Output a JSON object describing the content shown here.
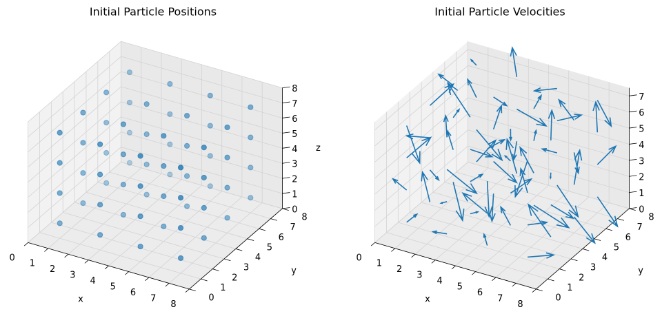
{
  "chart_data": [
    {
      "type": "scatter3d",
      "title": "Initial Particle Positions",
      "x_label": "x",
      "y_label": "y",
      "z_label": "z",
      "color": "#1f77b4",
      "xlim": [
        0,
        8
      ],
      "ylim": [
        0,
        8
      ],
      "zlim": [
        0,
        8
      ],
      "xticks": [
        0,
        1,
        2,
        3,
        4,
        5,
        6,
        7,
        8
      ],
      "yticks": [
        0,
        1,
        2,
        3,
        4,
        5,
        6,
        7,
        8
      ],
      "zticks": [
        0,
        1,
        2,
        3,
        4,
        5,
        6,
        7,
        8
      ],
      "x": [
        1,
        1,
        1,
        1,
        1,
        1,
        1,
        1,
        1,
        1,
        1,
        1,
        1,
        1,
        1,
        1,
        3,
        3,
        3,
        3,
        3,
        3,
        3,
        3,
        3,
        3,
        3,
        3,
        3,
        3,
        3,
        3,
        5,
        5,
        5,
        5,
        5,
        5,
        5,
        5,
        5,
        5,
        5,
        5,
        5,
        5,
        5,
        5,
        7,
        7,
        7,
        7,
        7,
        7,
        7,
        7,
        7,
        7,
        7,
        7,
        7,
        7,
        7,
        7
      ],
      "y": [
        1,
        1,
        1,
        1,
        3,
        3,
        3,
        3,
        5,
        5,
        5,
        5,
        7,
        7,
        7,
        7,
        1,
        1,
        1,
        1,
        3,
        3,
        3,
        3,
        5,
        5,
        5,
        5,
        7,
        7,
        7,
        7,
        1,
        1,
        1,
        1,
        3,
        3,
        3,
        3,
        5,
        5,
        5,
        5,
        7,
        7,
        7,
        7,
        1,
        1,
        1,
        1,
        3,
        3,
        3,
        3,
        5,
        5,
        5,
        5,
        7,
        7,
        7,
        7
      ],
      "z": [
        1,
        3,
        5,
        7,
        1,
        3,
        5,
        7,
        1,
        3,
        5,
        7,
        1,
        3,
        5,
        7,
        1,
        3,
        5,
        7,
        1,
        3,
        5,
        7,
        1,
        3,
        5,
        7,
        1,
        3,
        5,
        7,
        1,
        3,
        5,
        7,
        1,
        3,
        5,
        7,
        1,
        3,
        5,
        7,
        1,
        3,
        5,
        7,
        1,
        3,
        5,
        7,
        1,
        3,
        5,
        7,
        1,
        3,
        5,
        7,
        1,
        3,
        5,
        7
      ]
    },
    {
      "type": "quiver3d",
      "title": "Initial Particle Velocities",
      "x_label": "x",
      "y_label": "y",
      "color": "#1f77b4",
      "xlim": [
        0,
        8
      ],
      "ylim": [
        0,
        8
      ],
      "zlim": [
        0,
        7.5
      ],
      "xticks": [
        0,
        1,
        2,
        3,
        4,
        5,
        6,
        7,
        8
      ],
      "yticks": [
        0,
        1,
        2,
        3,
        4,
        5,
        6,
        7,
        8
      ],
      "zticks": [
        0,
        1,
        2,
        3,
        4,
        5,
        6,
        7
      ],
      "x": [
        1,
        1,
        1,
        1,
        1,
        1,
        1,
        1,
        1,
        1,
        1,
        1,
        1,
        1,
        1,
        1,
        3,
        3,
        3,
        3,
        3,
        3,
        3,
        3,
        3,
        3,
        3,
        3,
        3,
        3,
        3,
        3,
        5,
        5,
        5,
        5,
        5,
        5,
        5,
        5,
        5,
        5,
        5,
        5,
        5,
        5,
        5,
        5,
        7,
        7,
        7,
        7,
        7,
        7,
        7,
        7,
        7,
        7,
        7,
        7,
        7,
        7,
        7,
        7
      ],
      "y": [
        1,
        1,
        1,
        1,
        3,
        3,
        3,
        3,
        5,
        5,
        5,
        5,
        7,
        7,
        7,
        7,
        1,
        1,
        1,
        1,
        3,
        3,
        3,
        3,
        5,
        5,
        5,
        5,
        7,
        7,
        7,
        7,
        1,
        1,
        1,
        1,
        3,
        3,
        3,
        3,
        5,
        5,
        5,
        5,
        7,
        7,
        7,
        7,
        1,
        1,
        1,
        1,
        3,
        3,
        3,
        3,
        5,
        5,
        5,
        5,
        7,
        7,
        7,
        7
      ],
      "z": [
        1,
        3,
        5,
        7,
        1,
        3,
        5,
        7,
        1,
        3,
        5,
        7,
        1,
        3,
        5,
        7,
        1,
        3,
        5,
        7,
        1,
        3,
        5,
        7,
        1,
        3,
        5,
        7,
        1,
        3,
        5,
        7,
        1,
        3,
        5,
        7,
        1,
        3,
        5,
        7,
        1,
        3,
        5,
        7,
        1,
        3,
        5,
        7,
        1,
        3,
        5,
        7,
        1,
        3,
        5,
        7,
        1,
        3,
        5,
        7,
        1,
        3,
        5,
        7
      ],
      "u": [
        0.8,
        -1.2,
        0.5,
        1.4,
        -0.6,
        0.9,
        -1.5,
        0.3,
        1.1,
        -0.4,
        0.7,
        -1.3,
        0.2,
        1.5,
        -0.9,
        0.6,
        -1.1,
        0.4,
        1.3,
        -0.7,
        0.9,
        -0.2,
        1.2,
        -1.4,
        0.5,
        0.8,
        -0.3,
        1.0,
        -1.0,
        0.6,
        1.4,
        -0.8,
        0.3,
        -1.5,
        0.9,
        0.1,
        -0.6,
        1.2,
        -0.9,
        0.7,
        1.5,
        -1.2,
        0.4,
        -0.5,
        1.1,
        -0.1,
        0.8,
        -1.3,
        0.6,
        1.3,
        -0.8,
        0.2,
        -1.4,
        1.0,
        0.5,
        -0.7,
        1.2,
        -0.3,
        0.9,
        -1.1,
        1.4,
        0.1,
        -0.6,
        0.8
      ],
      "v": [
        -0.5,
        0.9,
        1.2,
        -1.3,
        0.4,
        -0.8,
        0.6,
        1.5,
        -1.1,
        0.2,
        -0.7,
        1.0,
        1.3,
        -0.4,
        0.8,
        -1.5,
        0.7,
        -1.2,
        0.3,
        1.1,
        -0.9,
        1.4,
        -0.2,
        0.5,
        -1.0,
        0.6,
        1.2,
        -0.6,
        0.9,
        -1.3,
        0.1,
        1.0,
        -0.8,
        0.5,
        -1.4,
        1.3,
        0.2,
        -0.3,
        1.1,
        -1.2,
        0.4,
        0.9,
        -0.5,
        1.5,
        -0.1,
        -1.1,
        0.7,
        0.3,
        1.2,
        -0.6,
        0.8,
        -1.4,
        0.5,
        0.2,
        -0.9,
        1.3,
        -0.3,
        1.0,
        -1.2,
        0.6,
        -0.7,
        1.4,
        0.9,
        -0.2
      ],
      "w": [
        1.1,
        -0.3,
        0.7,
        -1.0,
        1.4,
        0.2,
        -0.8,
        0.5,
        -1.3,
        0.9,
        1.2,
        -0.4,
        0.6,
        -1.1,
        0.3,
        1.5,
        -0.7,
        0.8,
        -1.2,
        0.4,
        1.0,
        -0.5,
        0.1,
        1.3,
        -0.9,
        -1.4,
        0.6,
        0.2,
        1.2,
        -0.1,
        -0.6,
        0.9,
        1.3,
        0.4,
        -1.0,
        -0.2,
        0.8,
        1.5,
        -0.7,
        0.3,
        -1.1,
        0.6,
        1.1,
        -0.3,
        -1.5,
        0.9,
        0.2,
        -0.8,
        -0.4,
        1.0,
        0.7,
        -1.3,
        1.2,
        -0.6,
        0.4,
        0.8,
        -1.0,
        1.4,
        -0.2,
        0.5,
        -0.9,
        0.3,
        1.1,
        -1.2
      ]
    }
  ]
}
